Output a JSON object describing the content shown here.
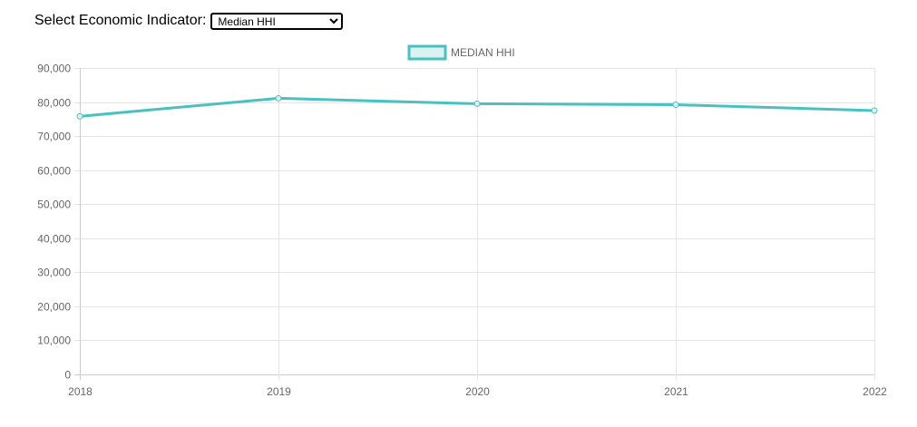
{
  "selector": {
    "label": "Select Economic Indicator:",
    "selected": "Median HHI",
    "options": [
      "Median HHI"
    ]
  },
  "colors": {
    "series_line": "#4bc0c0",
    "series_fill": "#dbf2f2",
    "grid": "#e5e5e5",
    "tick_text": "#666666"
  },
  "chart_data": {
    "type": "line",
    "title": "",
    "xlabel": "",
    "ylabel": "",
    "categories": [
      "2018",
      "2019",
      "2020",
      "2021",
      "2022"
    ],
    "series": [
      {
        "name": "MEDIAN HHI",
        "values": [
          75800,
          81100,
          79500,
          79200,
          77500
        ]
      }
    ],
    "ylim": [
      0,
      90000
    ],
    "yticks": [
      0,
      10000,
      20000,
      30000,
      40000,
      50000,
      60000,
      70000,
      80000,
      90000
    ],
    "ytick_labels": [
      "0",
      "10,000",
      "20,000",
      "30,000",
      "40,000",
      "50,000",
      "60,000",
      "70,000",
      "80,000",
      "90,000"
    ],
    "grid": true,
    "legend_position": "top-center"
  }
}
